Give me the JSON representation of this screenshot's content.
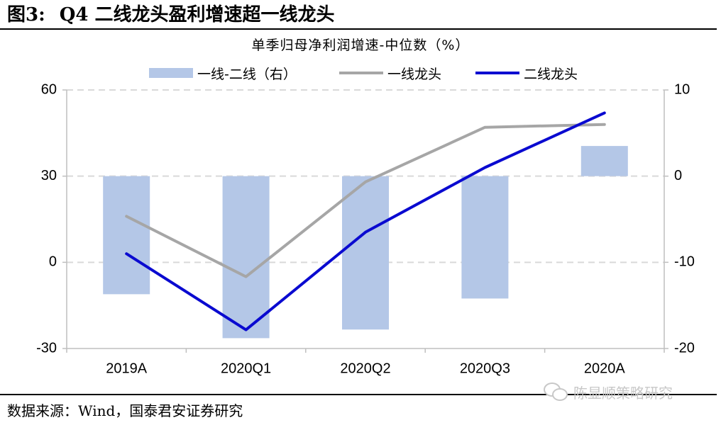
{
  "figure": {
    "number": "图3:",
    "title": "Q4 二线龙头盈利增速超一线龙头"
  },
  "source": "数据来源：Wind，国泰君安证券研究",
  "watermark": "陈显顺策略研究",
  "colors": {
    "bar": "#b4c7e7",
    "tier1_line": "#a6a6a6",
    "tier2_line": "#0a0ad0",
    "gridline": "#d9d9d9",
    "axis": "#bfbfbf"
  },
  "chart_data": {
    "type": "bar",
    "title": "单季归母净利润增速-中位数（%）",
    "categories": [
      "2019A",
      "2020Q1",
      "2020Q2",
      "2020Q3",
      "2020A"
    ],
    "y_left": {
      "ylim": [
        -30,
        60
      ],
      "ticks": [
        -30,
        0,
        30,
        60
      ]
    },
    "y_right": {
      "ylim": [
        -20,
        10
      ],
      "ticks": [
        -20,
        -10,
        0,
        10
      ]
    },
    "grid": true,
    "legend_position": "top-center",
    "series": [
      {
        "name": "一线-二线（右）",
        "type": "bar",
        "axis": "right",
        "values": [
          -13.7,
          -18.8,
          -17.8,
          -14.2,
          3.5
        ]
      },
      {
        "name": "一线龙头",
        "type": "line",
        "axis": "left",
        "values": [
          16,
          -5,
          28,
          47,
          48
        ]
      },
      {
        "name": "二线龙头",
        "type": "line",
        "axis": "left",
        "values": [
          3,
          -23.5,
          10.5,
          33,
          52
        ]
      }
    ]
  }
}
